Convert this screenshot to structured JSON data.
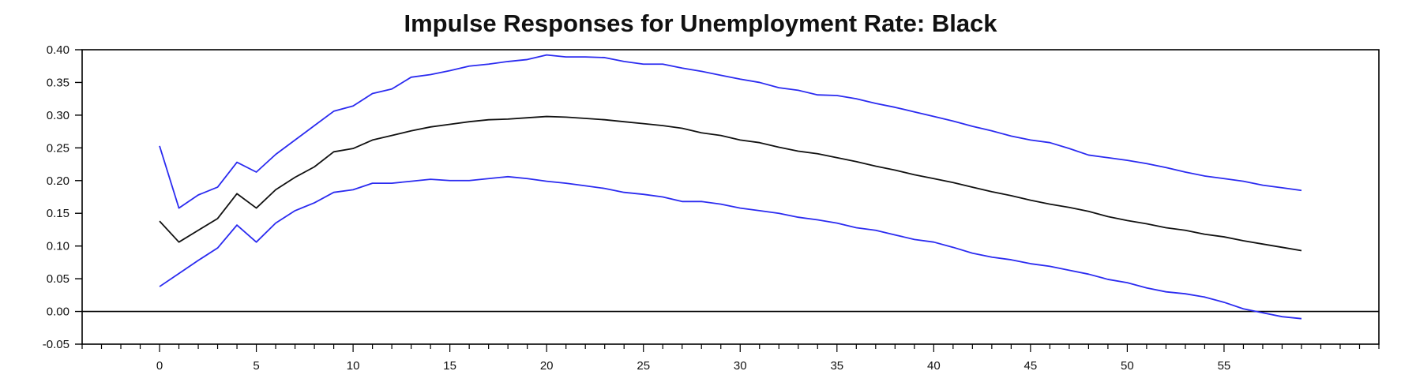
{
  "chart_data": {
    "type": "line",
    "title": "Impulse Responses for Unemployment Rate: Black",
    "xlabel": "",
    "ylabel": "",
    "xlim": [
      -4,
      63
    ],
    "ylim": [
      -0.05,
      0.4
    ],
    "x_ticks": [
      0,
      5,
      10,
      15,
      20,
      25,
      30,
      35,
      40,
      45,
      50,
      55
    ],
    "x_minor_tick_step": 1,
    "y_ticks": [
      -0.05,
      0.0,
      0.05,
      0.1,
      0.15,
      0.2,
      0.25,
      0.3,
      0.35,
      0.4
    ],
    "y_tick_labels": [
      "-0.05",
      "0.00",
      "0.05",
      "0.10",
      "0.15",
      "0.20",
      "0.25",
      "0.30",
      "0.35",
      "0.40"
    ],
    "zero_line": 0,
    "grid": false,
    "x": [
      0,
      1,
      2,
      3,
      4,
      5,
      6,
      7,
      8,
      9,
      10,
      11,
      12,
      13,
      14,
      15,
      16,
      17,
      18,
      19,
      20,
      21,
      22,
      23,
      24,
      25,
      26,
      27,
      28,
      29,
      30,
      31,
      32,
      33,
      34,
      35,
      36,
      37,
      38,
      39,
      40,
      41,
      42,
      43,
      44,
      45,
      46,
      47,
      48,
      49,
      50,
      51,
      52,
      53,
      54,
      55,
      56,
      57,
      58,
      59
    ],
    "series": [
      {
        "role": "upper-band",
        "color": "#2b2bf0",
        "values": [
          0.253,
          0.158,
          0.178,
          0.19,
          0.228,
          0.213,
          0.24,
          0.262,
          0.284,
          0.306,
          0.314,
          0.333,
          0.34,
          0.358,
          0.362,
          0.368,
          0.375,
          0.378,
          0.382,
          0.385,
          0.392,
          0.389,
          0.389,
          0.388,
          0.382,
          0.378,
          0.378,
          0.372,
          0.367,
          0.361,
          0.355,
          0.35,
          0.342,
          0.338,
          0.331,
          0.33,
          0.325,
          0.318,
          0.312,
          0.305,
          0.298,
          0.291,
          0.283,
          0.276,
          0.268,
          0.262,
          0.258,
          0.249,
          0.239,
          0.235,
          0.231,
          0.226,
          0.22,
          0.213,
          0.207,
          0.203,
          0.199,
          0.193,
          0.189,
          0.185
        ]
      },
      {
        "role": "impulse-response",
        "color": "#111111",
        "values": [
          0.138,
          0.106,
          0.124,
          0.142,
          0.18,
          0.158,
          0.186,
          0.205,
          0.221,
          0.244,
          0.249,
          0.262,
          0.269,
          0.276,
          0.282,
          0.286,
          0.29,
          0.293,
          0.294,
          0.296,
          0.298,
          0.297,
          0.295,
          0.293,
          0.29,
          0.287,
          0.284,
          0.28,
          0.273,
          0.269,
          0.262,
          0.258,
          0.251,
          0.245,
          0.241,
          0.235,
          0.229,
          0.222,
          0.216,
          0.209,
          0.203,
          0.197,
          0.19,
          0.183,
          0.177,
          0.17,
          0.164,
          0.159,
          0.153,
          0.145,
          0.139,
          0.134,
          0.128,
          0.124,
          0.118,
          0.114,
          0.108,
          0.103,
          0.098,
          0.093
        ]
      },
      {
        "role": "lower-band",
        "color": "#2b2bf0",
        "values": [
          0.038,
          0.058,
          0.078,
          0.097,
          0.132,
          0.106,
          0.135,
          0.154,
          0.166,
          0.182,
          0.186,
          0.196,
          0.196,
          0.199,
          0.202,
          0.2,
          0.2,
          0.203,
          0.206,
          0.203,
          0.199,
          0.196,
          0.192,
          0.188,
          0.182,
          0.179,
          0.175,
          0.168,
          0.168,
          0.164,
          0.158,
          0.154,
          0.15,
          0.144,
          0.14,
          0.135,
          0.128,
          0.124,
          0.117,
          0.11,
          0.106,
          0.098,
          0.089,
          0.083,
          0.079,
          0.073,
          0.069,
          0.063,
          0.057,
          0.049,
          0.044,
          0.036,
          0.03,
          0.027,
          0.022,
          0.014,
          0.004,
          -0.002,
          -0.008,
          -0.011
        ]
      }
    ]
  }
}
